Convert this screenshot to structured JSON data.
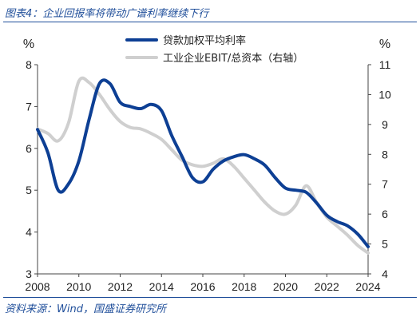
{
  "figure": {
    "title": "图表4：企业回报率将带动广谱利率继续下行",
    "source": "资料来源：Wind，国盛证券研究所"
  },
  "colors": {
    "series1": "#0d3f94",
    "series2": "#cfcfcf",
    "accent": "#1f4e9a"
  },
  "chart_data": {
    "type": "line",
    "title": "",
    "xlabel": "",
    "ylabel": "%",
    "y2label": "%",
    "xlim": [
      2008,
      2024
    ],
    "ylim": [
      3,
      8
    ],
    "y2lim": [
      4,
      11
    ],
    "xticks": [
      2008,
      2010,
      2012,
      2014,
      2016,
      2018,
      2020,
      2022,
      2024
    ],
    "yticks": [
      3,
      4,
      5,
      6,
      7,
      8
    ],
    "y2ticks": [
      4,
      5,
      6,
      7,
      8,
      9,
      10,
      11
    ],
    "grid": false,
    "legend": "top-center",
    "series": [
      {
        "name": "贷款加权平均利率",
        "axis": "left",
        "x": [
          2008.0,
          2008.5,
          2009.0,
          2009.5,
          2010.0,
          2010.5,
          2011.0,
          2011.5,
          2012.0,
          2012.5,
          2013.0,
          2013.5,
          2014.0,
          2014.5,
          2015.0,
          2015.5,
          2016.0,
          2016.5,
          2017.0,
          2017.5,
          2018.0,
          2018.5,
          2019.0,
          2019.5,
          2020.0,
          2020.5,
          2021.0,
          2021.5,
          2022.0,
          2022.5,
          2023.0,
          2023.5,
          2024.0
        ],
        "values": [
          6.45,
          5.9,
          5.0,
          5.15,
          5.7,
          6.7,
          7.55,
          7.55,
          7.1,
          7.0,
          6.95,
          7.05,
          6.9,
          6.3,
          5.8,
          5.3,
          5.2,
          5.5,
          5.7,
          5.8,
          5.85,
          5.75,
          5.6,
          5.3,
          5.05,
          5.0,
          4.95,
          4.7,
          4.4,
          4.25,
          4.15,
          3.95,
          3.65
        ]
      },
      {
        "name": "工业企业EBIT/总资本（右轴）",
        "axis": "right",
        "x": [
          2008.0,
          2008.5,
          2009.0,
          2009.5,
          2010.0,
          2010.5,
          2011.0,
          2011.5,
          2012.0,
          2012.5,
          2013.0,
          2013.5,
          2014.0,
          2014.5,
          2015.0,
          2015.5,
          2016.0,
          2016.5,
          2017.0,
          2017.5,
          2018.0,
          2018.5,
          2019.0,
          2019.5,
          2020.0,
          2020.5,
          2021.0,
          2021.5,
          2022.0,
          2022.5,
          2023.0,
          2023.5,
          2024.0
        ],
        "values": [
          8.85,
          8.7,
          8.45,
          9.05,
          10.45,
          10.4,
          10.0,
          9.5,
          9.1,
          8.9,
          8.85,
          8.7,
          8.5,
          8.15,
          7.8,
          7.65,
          7.6,
          7.7,
          7.85,
          7.6,
          7.2,
          6.8,
          6.4,
          6.1,
          6.0,
          6.3,
          6.95,
          6.4,
          5.9,
          5.6,
          5.3,
          4.95,
          4.7
        ]
      }
    ]
  }
}
